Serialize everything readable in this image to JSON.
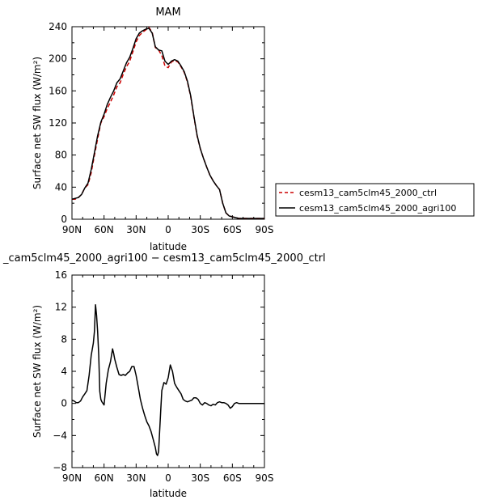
{
  "chart_data": [
    {
      "type": "line",
      "title": "MAM",
      "xlabel": "latitude",
      "ylabel": "Surface net SW flux (W/m²)",
      "xlim": [
        90,
        -90
      ],
      "ylim": [
        0,
        240
      ],
      "xticks": [
        90,
        60,
        30,
        0,
        -30,
        -60,
        -90
      ],
      "xtick_labels": [
        "90N",
        "60N",
        "30N",
        "0",
        "30S",
        "60S",
        "90S"
      ],
      "yticks": [
        0,
        40,
        80,
        120,
        160,
        200,
        240
      ],
      "ytick_labels": [
        "0",
        "40",
        "80",
        "120",
        "160",
        "200",
        "240"
      ],
      "grid": false,
      "legend": "right, outside plot",
      "series": [
        {
          "name": "cesm13_cam5clm45_2000_ctrl",
          "color": "#cc0000",
          "dash": "dashed",
          "x": [
            90,
            87,
            84,
            81,
            78,
            75,
            72,
            69,
            66,
            63,
            60,
            57,
            54,
            51,
            48,
            45,
            42,
            39,
            36,
            33,
            30,
            27,
            24,
            21,
            18,
            15,
            12,
            9,
            6,
            3,
            0,
            -3,
            -6,
            -9,
            -12,
            -15,
            -18,
            -21,
            -24,
            -27,
            -30,
            -33,
            -36,
            -39,
            -42,
            -45,
            -48,
            -51,
            -54,
            -57,
            -60,
            -63,
            -66,
            -69,
            -72,
            -75,
            -78,
            -81,
            -84,
            -87,
            -90
          ],
          "y": [
            25,
            25,
            27,
            31,
            39,
            43,
            58,
            80,
            100,
            120,
            128,
            138,
            146,
            155,
            165,
            170,
            181,
            190,
            197,
            209,
            221,
            229,
            233,
            236,
            239,
            233,
            214,
            211,
            204,
            191,
            189,
            196,
            198,
            196,
            190,
            183,
            171,
            153,
            128,
            104,
            88,
            76,
            65,
            55,
            48,
            42,
            37,
            20,
            8,
            4,
            3,
            2,
            1,
            1,
            1,
            1,
            1,
            1,
            1,
            1,
            1
          ]
        },
        {
          "name": "cesm13_cam5clm45_2000_agri100",
          "color": "#000000",
          "dash": "solid",
          "x": [
            90,
            87,
            84,
            81,
            78,
            75,
            72,
            69,
            66,
            63,
            60,
            57,
            54,
            51,
            48,
            45,
            42,
            39,
            36,
            33,
            30,
            27,
            24,
            21,
            18,
            15,
            12,
            9,
            6,
            3,
            0,
            -3,
            -6,
            -9,
            -12,
            -15,
            -18,
            -21,
            -24,
            -27,
            -30,
            -33,
            -36,
            -39,
            -42,
            -45,
            -48,
            -51,
            -54,
            -57,
            -60,
            -63,
            -66,
            -69,
            -72,
            -75,
            -78,
            -81,
            -84,
            -87,
            -90
          ],
          "y": [
            25,
            26,
            27,
            31,
            39,
            45,
            62,
            83,
            104,
            121,
            131,
            143,
            152,
            160,
            170,
            175,
            185,
            195,
            202,
            213,
            225,
            232,
            235,
            237,
            238,
            232,
            215,
            211,
            210,
            197,
            193,
            197,
            199,
            197,
            191,
            184,
            172,
            154,
            129,
            105,
            88,
            76,
            65,
            55,
            48,
            42,
            37,
            20,
            8,
            4,
            3,
            2,
            1,
            1,
            1,
            1,
            1,
            1,
            1,
            1,
            1
          ]
        }
      ]
    },
    {
      "type": "line",
      "title": "_cam5clm45_2000_agri100 − cesm13_cam5clm45_2000_ctrl",
      "xlabel": "latitude",
      "ylabel": "Surface net SW flux (W/m²)",
      "xlim": [
        90,
        -90
      ],
      "ylim": [
        -8,
        16
      ],
      "xticks": [
        90,
        60,
        30,
        0,
        -30,
        -60,
        -90
      ],
      "xtick_labels": [
        "90N",
        "60N",
        "30N",
        "0",
        "30S",
        "60S",
        "90S"
      ],
      "yticks": [
        -8,
        -4,
        0,
        4,
        8,
        12,
        16
      ],
      "ytick_labels": [
        "−8",
        "−4",
        "0",
        "4",
        "8",
        "12",
        "16"
      ],
      "grid": false,
      "series": [
        {
          "color": "#000000",
          "dash": "solid",
          "x": [
            90,
            88,
            86,
            84,
            82,
            80,
            78,
            76,
            74,
            72,
            70,
            69,
            68,
            67,
            66,
            65,
            64,
            63,
            62,
            60,
            58,
            56,
            54,
            52,
            51,
            50,
            48,
            46,
            44,
            42,
            40,
            38,
            36,
            34,
            32,
            30,
            28,
            26,
            24,
            22,
            20,
            18,
            16,
            14,
            12,
            11,
            10,
            9,
            8,
            7,
            6,
            4,
            2,
            0,
            -2,
            -4,
            -6,
            -8,
            -10,
            -12,
            -14,
            -16,
            -18,
            -20,
            -22,
            -24,
            -26,
            -28,
            -30,
            -32,
            -34,
            -36,
            -38,
            -40,
            -42,
            -44,
            -46,
            -48,
            -50,
            -52,
            -54,
            -56,
            -58,
            -60,
            -62,
            -64,
            -66,
            -68,
            -70,
            -72,
            -74,
            -76,
            -78,
            -80,
            -84,
            -88,
            -90
          ],
          "y": [
            0.4,
            0.3,
            0.1,
            0.1,
            0.3,
            0.8,
            1.2,
            1.6,
            3.5,
            6,
            7.5,
            9,
            12.3,
            11,
            9,
            6,
            1.5,
            0.5,
            0.2,
            -0.2,
            2.5,
            4.2,
            5.2,
            6.8,
            6.2,
            5.5,
            4.5,
            3.6,
            3.5,
            3.6,
            3.5,
            3.8,
            4.0,
            4.6,
            4.6,
            3.5,
            2.0,
            0.5,
            -0.6,
            -1.5,
            -2.3,
            -2.8,
            -3.5,
            -4.5,
            -5.5,
            -6.3,
            -6.5,
            -6.0,
            -3.5,
            -1.0,
            1.6,
            2.6,
            2.4,
            3.2,
            4.8,
            4.0,
            2.5,
            2.0,
            1.6,
            1.2,
            0.5,
            0.3,
            0.2,
            0.3,
            0.4,
            0.7,
            0.7,
            0.5,
            0.0,
            -0.2,
            0.1,
            0.0,
            -0.2,
            -0.3,
            -0.1,
            -0.2,
            0.1,
            0.2,
            0.1,
            0.1,
            0.0,
            -0.2,
            -0.6,
            -0.4,
            0.0,
            0.1,
            0.0,
            0.0,
            0.0,
            0.0,
            0.0,
            0.0,
            0.0,
            0.0,
            0.0,
            0.0,
            0.0
          ]
        }
      ]
    }
  ]
}
